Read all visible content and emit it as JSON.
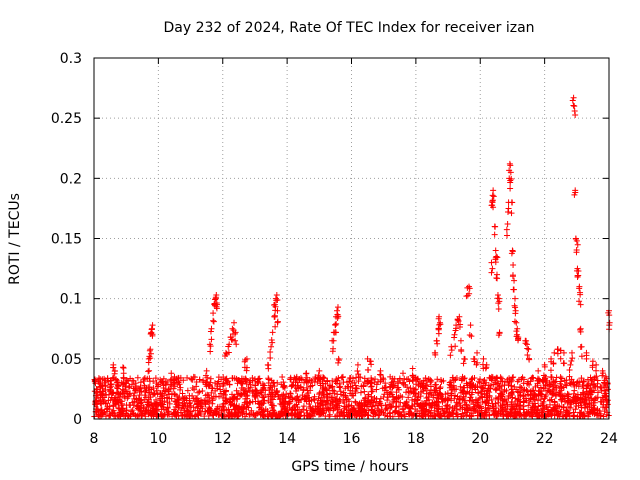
{
  "chart_data": {
    "type": "scatter",
    "title": "Day 232 of 2024, Rate Of TEC Index for receiver izan",
    "xlabel": "GPS time / hours",
    "ylabel": "ROTI / TECUs",
    "xlim": [
      8,
      24
    ],
    "ylim": [
      0,
      0.3
    ],
    "x_ticks": [
      8,
      10,
      12,
      14,
      16,
      18,
      20,
      22,
      24
    ],
    "x_tick_labels": [
      "8",
      "10",
      "12",
      "14",
      "16",
      "18",
      "20",
      "22",
      "24"
    ],
    "y_ticks": [
      0,
      0.05,
      0.1,
      0.15,
      0.2,
      0.25,
      0.3
    ],
    "y_tick_labels": [
      "0",
      "0.05",
      "0.1",
      "0.15",
      "0.2",
      "0.25",
      "0.3"
    ],
    "grid": true,
    "marker": "+",
    "series": [
      {
        "name": "ROTI",
        "color": "#ff0000",
        "baseline_dense_band": {
          "x_range": [
            8,
            24
          ],
          "y_range": [
            0.002,
            0.035
          ]
        },
        "points": [
          [
            8.2,
            0.03
          ],
          [
            8.35,
            0.028
          ],
          [
            8.6,
            0.045
          ],
          [
            8.65,
            0.04
          ],
          [
            8.9,
            0.043
          ],
          [
            9.7,
            0.047
          ],
          [
            9.72,
            0.052
          ],
          [
            9.75,
            0.058
          ],
          [
            9.78,
            0.072
          ],
          [
            9.8,
            0.075
          ],
          [
            9.82,
            0.078
          ],
          [
            10.4,
            0.038
          ],
          [
            10.5,
            0.035
          ],
          [
            11.5,
            0.04
          ],
          [
            11.6,
            0.062
          ],
          [
            11.65,
            0.075
          ],
          [
            11.7,
            0.088
          ],
          [
            11.75,
            0.096
          ],
          [
            11.78,
            0.1
          ],
          [
            11.8,
            0.103
          ],
          [
            11.82,
            0.095
          ],
          [
            12.1,
            0.055
          ],
          [
            12.2,
            0.062
          ],
          [
            12.25,
            0.068
          ],
          [
            12.3,
            0.075
          ],
          [
            12.35,
            0.08
          ],
          [
            12.4,
            0.072
          ],
          [
            12.7,
            0.049
          ],
          [
            12.75,
            0.05
          ],
          [
            13.4,
            0.045
          ],
          [
            13.5,
            0.06
          ],
          [
            13.55,
            0.072
          ],
          [
            13.6,
            0.085
          ],
          [
            13.62,
            0.095
          ],
          [
            13.65,
            0.1
          ],
          [
            13.68,
            0.103
          ],
          [
            13.7,
            0.09
          ],
          [
            14.3,
            0.035
          ],
          [
            14.6,
            0.038
          ],
          [
            15.0,
            0.04
          ],
          [
            15.4,
            0.065
          ],
          [
            15.45,
            0.072
          ],
          [
            15.5,
            0.078
          ],
          [
            15.52,
            0.085
          ],
          [
            15.55,
            0.09
          ],
          [
            15.58,
            0.093
          ],
          [
            15.6,
            0.05
          ],
          [
            16.2,
            0.045
          ],
          [
            16.5,
            0.05
          ],
          [
            16.6,
            0.048
          ],
          [
            16.9,
            0.04
          ],
          [
            17.2,
            0.035
          ],
          [
            17.6,
            0.038
          ],
          [
            17.9,
            0.042
          ],
          [
            18.6,
            0.055
          ],
          [
            18.65,
            0.065
          ],
          [
            18.7,
            0.075
          ],
          [
            18.72,
            0.085
          ],
          [
            18.75,
            0.08
          ],
          [
            19.1,
            0.06
          ],
          [
            19.2,
            0.07
          ],
          [
            19.25,
            0.078
          ],
          [
            19.3,
            0.083
          ],
          [
            19.35,
            0.085
          ],
          [
            19.4,
            0.065
          ],
          [
            19.5,
            0.05
          ],
          [
            19.6,
            0.109
          ],
          [
            19.65,
            0.11
          ],
          [
            19.7,
            0.078
          ],
          [
            19.8,
            0.05
          ],
          [
            19.9,
            0.055
          ],
          [
            20.1,
            0.05
          ],
          [
            20.2,
            0.045
          ],
          [
            20.35,
            0.13
          ],
          [
            20.38,
            0.18
          ],
          [
            20.4,
            0.19
          ],
          [
            20.42,
            0.185
          ],
          [
            20.45,
            0.16
          ],
          [
            20.48,
            0.14
          ],
          [
            20.5,
            0.135
          ],
          [
            20.52,
            0.12
          ],
          [
            20.55,
            0.103
          ],
          [
            20.58,
            0.1
          ],
          [
            20.6,
            0.072
          ],
          [
            20.85,
            0.162
          ],
          [
            20.88,
            0.18
          ],
          [
            20.9,
            0.2
          ],
          [
            20.92,
            0.212
          ],
          [
            20.95,
            0.205
          ],
          [
            20.98,
            0.18
          ],
          [
            21.0,
            0.14
          ],
          [
            21.02,
            0.128
          ],
          [
            21.05,
            0.115
          ],
          [
            21.08,
            0.1
          ],
          [
            21.1,
            0.09
          ],
          [
            21.12,
            0.08
          ],
          [
            21.15,
            0.075
          ],
          [
            21.18,
            0.068
          ],
          [
            21.4,
            0.065
          ],
          [
            21.45,
            0.062
          ],
          [
            21.5,
            0.058
          ],
          [
            21.8,
            0.04
          ],
          [
            22.0,
            0.045
          ],
          [
            22.2,
            0.05
          ],
          [
            22.3,
            0.055
          ],
          [
            22.4,
            0.058
          ],
          [
            22.5,
            0.057
          ],
          [
            22.6,
            0.055
          ],
          [
            22.8,
            0.045
          ],
          [
            22.85,
            0.055
          ],
          [
            22.9,
            0.267
          ],
          [
            22.92,
            0.26
          ],
          [
            22.95,
            0.19
          ],
          [
            22.97,
            0.15
          ],
          [
            23.0,
            0.148
          ],
          [
            23.02,
            0.125
          ],
          [
            23.05,
            0.123
          ],
          [
            23.08,
            0.11
          ],
          [
            23.1,
            0.105
          ],
          [
            23.12,
            0.075
          ],
          [
            23.15,
            0.06
          ],
          [
            23.3,
            0.055
          ],
          [
            23.5,
            0.048
          ],
          [
            23.6,
            0.045
          ],
          [
            23.8,
            0.04
          ],
          [
            23.9,
            0.035
          ],
          [
            24.0,
            0.09
          ],
          [
            24.02,
            0.08
          ]
        ]
      }
    ]
  }
}
